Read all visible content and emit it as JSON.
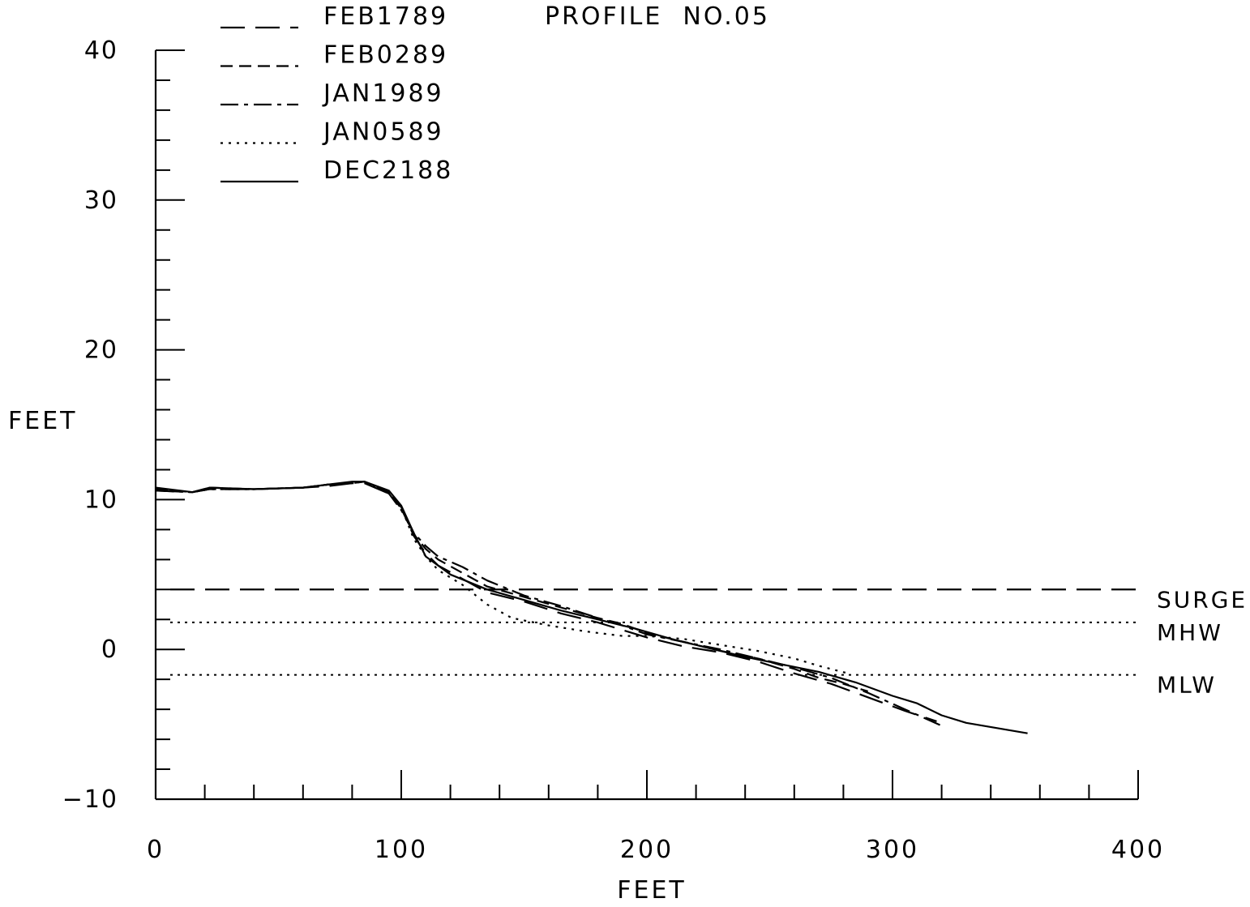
{
  "chart_data": {
    "type": "line",
    "title": "PROFILE  NO.05",
    "xlabel": "FEET",
    "ylabel": "FEET",
    "xlim": [
      0,
      400
    ],
    "ylim": [
      -10,
      40
    ],
    "x_ticks": [
      0,
      100,
      200,
      300,
      400
    ],
    "y_ticks": [
      -10,
      0,
      10,
      20,
      30,
      40
    ],
    "x_tick_labels": [
      "0",
      "100",
      "200",
      "300",
      "400"
    ],
    "y_tick_labels": [
      "−10",
      "0",
      "10",
      "20",
      "30",
      "40"
    ],
    "grid": false,
    "legend_position": "top-left",
    "reference_lines": [
      {
        "label": "SURGE",
        "y": 4.0,
        "style": "long-dash"
      },
      {
        "label": "MHW",
        "y": 1.8,
        "style": "dotted"
      },
      {
        "label": "MLW",
        "y": -1.7,
        "style": "dotted"
      }
    ],
    "series": [
      {
        "name": "FEB1789",
        "style": "long-dash",
        "x": [
          0,
          15,
          22,
          40,
          60,
          70,
          80,
          85,
          95,
          100,
          105,
          110,
          115,
          125,
          135,
          150,
          165,
          180,
          190,
          200,
          215,
          230,
          245,
          260,
          275,
          290,
          305,
          318
        ],
        "y": [
          10.6,
          10.5,
          10.7,
          10.7,
          10.8,
          10.9,
          11.1,
          11.1,
          10.4,
          9.5,
          7.6,
          6.4,
          5.6,
          4.7,
          3.8,
          3.2,
          2.4,
          1.8,
          1.3,
          0.8,
          0.2,
          -0.2,
          -0.8,
          -1.6,
          -2.3,
          -3.2,
          -4.1,
          -4.8
        ]
      },
      {
        "name": "FEB0289",
        "style": "dash",
        "x": [
          0,
          15,
          22,
          40,
          60,
          70,
          80,
          85,
          95,
          100,
          105,
          110,
          115,
          125,
          135,
          150,
          165,
          180,
          190,
          200,
          215,
          230,
          245,
          260,
          270,
          280,
          290
        ],
        "y": [
          10.7,
          10.5,
          10.8,
          10.7,
          10.8,
          11.0,
          11.1,
          11.2,
          10.5,
          9.4,
          7.7,
          6.7,
          6.0,
          5.1,
          4.2,
          3.5,
          2.8,
          2.1,
          1.7,
          1.1,
          0.5,
          -0.1,
          -0.6,
          -1.3,
          -1.9,
          -2.3,
          -2.8
        ]
      },
      {
        "name": "JAN1989",
        "style": "dash-dot",
        "x": [
          0,
          15,
          22,
          40,
          60,
          70,
          80,
          85,
          95,
          100,
          105,
          110,
          115,
          125,
          135,
          150,
          165,
          180,
          190,
          200,
          215,
          230,
          245,
          260,
          275,
          290,
          305,
          320
        ],
        "y": [
          10.6,
          10.5,
          10.7,
          10.7,
          10.8,
          11.0,
          11.1,
          11.2,
          10.4,
          9.3,
          7.8,
          6.9,
          6.2,
          5.5,
          4.6,
          3.6,
          2.9,
          2.1,
          1.6,
          1.0,
          0.5,
          0.0,
          -0.6,
          -1.2,
          -1.9,
          -2.9,
          -4.0,
          -5.1
        ]
      },
      {
        "name": "JAN0589",
        "style": "dotted",
        "x": [
          0,
          15,
          22,
          40,
          60,
          70,
          80,
          85,
          95,
          100,
          105,
          110,
          115,
          125,
          135,
          145,
          160,
          175,
          190,
          200,
          215,
          230,
          245,
          260,
          270,
          282
        ],
        "y": [
          10.6,
          10.5,
          10.7,
          10.7,
          10.8,
          11.0,
          11.1,
          11.2,
          10.5,
          9.5,
          7.4,
          6.2,
          5.3,
          4.3,
          3.0,
          2.1,
          1.6,
          1.2,
          0.9,
          0.9,
          0.7,
          0.3,
          -0.1,
          -0.6,
          -1.1,
          -1.6
        ]
      },
      {
        "name": "DEC2188",
        "style": "solid",
        "x": [
          0,
          15,
          22,
          40,
          60,
          70,
          80,
          85,
          95,
          100,
          105,
          110,
          120,
          135,
          150,
          165,
          180,
          195,
          210,
          225,
          240,
          255,
          270,
          285,
          300,
          310,
          320,
          330,
          355
        ],
        "y": [
          10.8,
          10.5,
          10.8,
          10.7,
          10.8,
          11.0,
          11.2,
          11.2,
          10.6,
          9.6,
          7.8,
          6.2,
          5.0,
          4.0,
          3.3,
          2.6,
          2.0,
          1.4,
          0.7,
          0.1,
          -0.5,
          -1.0,
          -1.5,
          -2.2,
          -3.1,
          -3.6,
          -4.4,
          -4.9,
          -5.6
        ]
      }
    ]
  }
}
